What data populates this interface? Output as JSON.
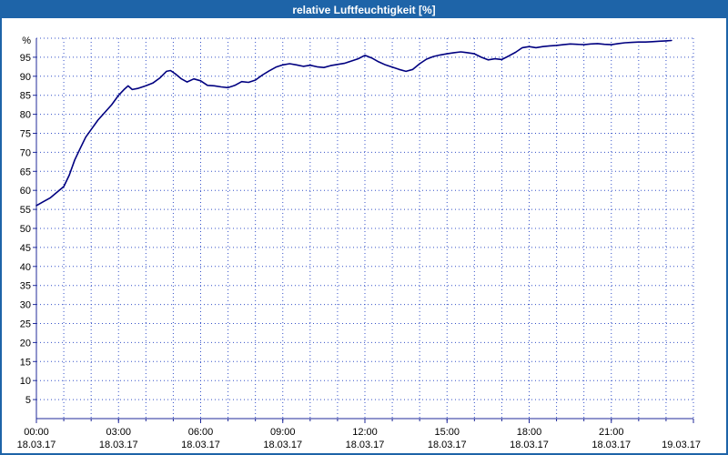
{
  "window": {
    "title": "relative Luftfeuchtigkeit [%]"
  },
  "colors": {
    "titlebar_bg": "#1e64a8",
    "titlebar_text": "#ffffff",
    "border": "#1e64a8",
    "grid": "#3450c8",
    "axis": "#202a9a",
    "line": "#000080",
    "text": "#000000",
    "plot_bg": "#ffffff"
  },
  "chart_data": {
    "type": "line",
    "title": "relative Luftfeuchtigkeit [%]",
    "ylabel": "relative Luftfeuchtigkeit",
    "y_unit_label": "%",
    "ylim": [
      0,
      100
    ],
    "y_grid_step": 5,
    "y_ticks": [
      5,
      10,
      15,
      20,
      25,
      30,
      35,
      40,
      45,
      50,
      55,
      60,
      65,
      70,
      75,
      80,
      85,
      90,
      95
    ],
    "x_span_hours": 24,
    "x_grid_step_hours": 1,
    "grid_style": "dotted",
    "legend_position": "none",
    "x_ticks": [
      {
        "hour": 0,
        "time": "00:00",
        "date": "18.03.17"
      },
      {
        "hour": 3,
        "time": "03:00",
        "date": "18.03.17"
      },
      {
        "hour": 6,
        "time": "06:00",
        "date": "18.03.17"
      },
      {
        "hour": 9,
        "time": "09:00",
        "date": "18.03.17"
      },
      {
        "hour": 12,
        "time": "12:00",
        "date": "18.03.17"
      },
      {
        "hour": 15,
        "time": "15:00",
        "date": "18.03.17"
      },
      {
        "hour": 18,
        "time": "18:00",
        "date": "18.03.17"
      },
      {
        "hour": 21,
        "time": "21:00",
        "date": "18.03.17"
      },
      {
        "hour": 24,
        "time": "",
        "date": "19.03.17"
      }
    ],
    "series": [
      {
        "name": "relative Luftfeuchtigkeit",
        "unit": "%",
        "points": [
          [
            0.0,
            56
          ],
          [
            0.25,
            57
          ],
          [
            0.5,
            58
          ],
          [
            0.75,
            59.5
          ],
          [
            1.0,
            61
          ],
          [
            1.2,
            64
          ],
          [
            1.4,
            68
          ],
          [
            1.6,
            71
          ],
          [
            1.8,
            74
          ],
          [
            2.0,
            76
          ],
          [
            2.25,
            78.5
          ],
          [
            2.5,
            80.5
          ],
          [
            2.75,
            82.5
          ],
          [
            3.0,
            85
          ],
          [
            3.2,
            86.5
          ],
          [
            3.35,
            87.5
          ],
          [
            3.5,
            86.5
          ],
          [
            3.7,
            86.8
          ],
          [
            4.0,
            87.5
          ],
          [
            4.25,
            88.2
          ],
          [
            4.5,
            89.5
          ],
          [
            4.75,
            91.3
          ],
          [
            4.9,
            91.5
          ],
          [
            5.1,
            90.5
          ],
          [
            5.3,
            89.3
          ],
          [
            5.5,
            88.5
          ],
          [
            5.75,
            89.3
          ],
          [
            6.0,
            88.8
          ],
          [
            6.25,
            87.6
          ],
          [
            6.5,
            87.5
          ],
          [
            6.75,
            87.2
          ],
          [
            7.0,
            87
          ],
          [
            7.25,
            87.6
          ],
          [
            7.5,
            88.6
          ],
          [
            7.75,
            88.4
          ],
          [
            8.0,
            89
          ],
          [
            8.25,
            90.3
          ],
          [
            8.5,
            91.4
          ],
          [
            8.75,
            92.4
          ],
          [
            9.0,
            93
          ],
          [
            9.25,
            93.3
          ],
          [
            9.5,
            93
          ],
          [
            9.75,
            92.6
          ],
          [
            10.0,
            92.9
          ],
          [
            10.25,
            92.5
          ],
          [
            10.5,
            92.3
          ],
          [
            10.75,
            92.8
          ],
          [
            11.0,
            93.1
          ],
          [
            11.25,
            93.4
          ],
          [
            11.5,
            94
          ],
          [
            11.75,
            94.6
          ],
          [
            12.0,
            95.5
          ],
          [
            12.25,
            94.8
          ],
          [
            12.5,
            93.8
          ],
          [
            12.75,
            93
          ],
          [
            13.0,
            92.4
          ],
          [
            13.25,
            91.8
          ],
          [
            13.5,
            91.3
          ],
          [
            13.75,
            91.8
          ],
          [
            14.0,
            93.3
          ],
          [
            14.25,
            94.5
          ],
          [
            14.5,
            95.2
          ],
          [
            14.75,
            95.6
          ],
          [
            15.0,
            95.9
          ],
          [
            15.25,
            96.2
          ],
          [
            15.5,
            96.4
          ],
          [
            15.75,
            96.2
          ],
          [
            16.0,
            95.9
          ],
          [
            16.25,
            95
          ],
          [
            16.5,
            94.3
          ],
          [
            16.75,
            94.6
          ],
          [
            17.0,
            94.4
          ],
          [
            17.25,
            95.3
          ],
          [
            17.5,
            96.3
          ],
          [
            17.75,
            97.5
          ],
          [
            18.0,
            97.8
          ],
          [
            18.25,
            97.5
          ],
          [
            18.5,
            97.8
          ],
          [
            18.75,
            98.0
          ],
          [
            19.0,
            98.1
          ],
          [
            19.25,
            98.3
          ],
          [
            19.5,
            98.5
          ],
          [
            19.75,
            98.4
          ],
          [
            20.0,
            98.3
          ],
          [
            20.25,
            98.5
          ],
          [
            20.5,
            98.6
          ],
          [
            20.75,
            98.4
          ],
          [
            21.0,
            98.3
          ],
          [
            21.25,
            98.6
          ],
          [
            21.5,
            98.8
          ],
          [
            21.75,
            98.9
          ],
          [
            22.0,
            99.0
          ],
          [
            22.25,
            99.0
          ],
          [
            22.5,
            99.1
          ],
          [
            22.75,
            99.2
          ],
          [
            23.0,
            99.3
          ],
          [
            23.2,
            99.4
          ]
        ]
      }
    ]
  }
}
